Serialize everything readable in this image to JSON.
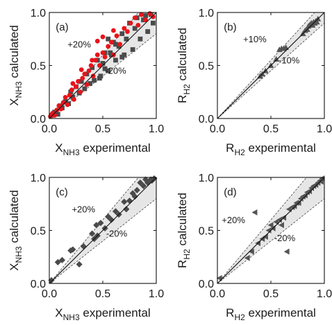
{
  "chart_data": [
    {
      "type": "scatter",
      "panel_label": "(a)",
      "xlabel": {
        "base": "X",
        "sub": "NH3",
        "suffix": " experimental"
      },
      "ylabel": {
        "base": "X",
        "sub": "NH3",
        "suffix": " calculated"
      },
      "xlim": [
        0,
        1
      ],
      "ylim": [
        0,
        1
      ],
      "xticks": [
        "0.0",
        "0.5",
        "1.0"
      ],
      "yticks": [
        "0.0",
        "0.5",
        "1.0"
      ],
      "band_labels": [
        "+20%",
        "-20%"
      ],
      "band_pct": 20,
      "grid": false,
      "series": [
        {
          "marker": "square",
          "color": "#4a4a4a",
          "points": [
            [
              0.02,
              0.03
            ],
            [
              0.05,
              0.06
            ],
            [
              0.08,
              0.04
            ],
            [
              0.1,
              0.12
            ],
            [
              0.12,
              0.1
            ],
            [
              0.15,
              0.16
            ],
            [
              0.18,
              0.14
            ],
            [
              0.2,
              0.25
            ],
            [
              0.22,
              0.2
            ],
            [
              0.25,
              0.3
            ],
            [
              0.28,
              0.24
            ],
            [
              0.3,
              0.35
            ],
            [
              0.33,
              0.28
            ],
            [
              0.35,
              0.42
            ],
            [
              0.38,
              0.33
            ],
            [
              0.4,
              0.48
            ],
            [
              0.42,
              0.36
            ],
            [
              0.45,
              0.55
            ],
            [
              0.48,
              0.4
            ],
            [
              0.5,
              0.52
            ],
            [
              0.52,
              0.62
            ],
            [
              0.55,
              0.45
            ],
            [
              0.58,
              0.6
            ],
            [
              0.6,
              0.72
            ],
            [
              0.62,
              0.55
            ],
            [
              0.65,
              0.68
            ],
            [
              0.68,
              0.8
            ],
            [
              0.7,
              0.6
            ],
            [
              0.72,
              0.75
            ],
            [
              0.75,
              0.9
            ],
            [
              0.78,
              0.65
            ],
            [
              0.8,
              0.85
            ],
            [
              0.82,
              0.95
            ],
            [
              0.85,
              0.75
            ],
            [
              0.88,
              0.93
            ],
            [
              0.9,
              0.97
            ],
            [
              0.92,
              0.82
            ],
            [
              0.95,
              0.98
            ],
            [
              0.97,
              0.9
            ],
            [
              0.57,
              0.62
            ],
            [
              0.55,
              0.75
            ],
            [
              0.47,
              0.38
            ],
            [
              0.52,
              0.47
            ],
            [
              0.62,
              0.7
            ],
            [
              0.68,
              0.58
            ]
          ]
        },
        {
          "marker": "circle",
          "color": "#e8141b",
          "points": [
            [
              0.01,
              0.02
            ],
            [
              0.03,
              0.05
            ],
            [
              0.05,
              0.03
            ],
            [
              0.07,
              0.08
            ],
            [
              0.09,
              0.12
            ],
            [
              0.11,
              0.09
            ],
            [
              0.13,
              0.15
            ],
            [
              0.15,
              0.2
            ],
            [
              0.17,
              0.13
            ],
            [
              0.19,
              0.22
            ],
            [
              0.21,
              0.27
            ],
            [
              0.23,
              0.18
            ],
            [
              0.25,
              0.3
            ],
            [
              0.27,
              0.35
            ],
            [
              0.29,
              0.25
            ],
            [
              0.31,
              0.38
            ],
            [
              0.33,
              0.42
            ],
            [
              0.35,
              0.32
            ],
            [
              0.37,
              0.45
            ],
            [
              0.39,
              0.5
            ],
            [
              0.41,
              0.4
            ],
            [
              0.43,
              0.55
            ],
            [
              0.45,
              0.6
            ],
            [
              0.47,
              0.5
            ],
            [
              0.5,
              0.62
            ],
            [
              0.52,
              0.58
            ],
            [
              0.55,
              0.68
            ],
            [
              0.58,
              0.72
            ],
            [
              0.6,
              0.6
            ],
            [
              0.63,
              0.78
            ],
            [
              0.66,
              0.7
            ],
            [
              0.7,
              0.85
            ],
            [
              0.73,
              0.82
            ],
            [
              0.76,
              0.9
            ],
            [
              0.8,
              0.95
            ],
            [
              0.83,
              0.88
            ],
            [
              0.86,
              0.98
            ],
            [
              0.9,
              0.93
            ],
            [
              0.94,
              0.99
            ],
            [
              0.97,
              0.96
            ],
            [
              0.4,
              0.55
            ],
            [
              0.45,
              0.73
            ],
            [
              0.5,
              0.77
            ],
            [
              0.6,
              0.83
            ],
            [
              0.3,
              0.46
            ],
            [
              0.22,
              0.33
            ]
          ]
        }
      ]
    },
    {
      "type": "scatter",
      "panel_label": "(b)",
      "xlabel": {
        "base": "R",
        "sub": "H2",
        "suffix": " experimental"
      },
      "ylabel": {
        "base": "R",
        "sub": "H2",
        "suffix": " calculated"
      },
      "xlim": [
        0,
        1
      ],
      "ylim": [
        0,
        1
      ],
      "xticks": [
        "0.0",
        "0.5",
        "1.0"
      ],
      "yticks": [
        "0.0",
        "0.5",
        "1.0"
      ],
      "band_labels": [
        "+10%",
        "-10%"
      ],
      "band_pct": 10,
      "grid": false,
      "series": [
        {
          "marker": "triangle-up",
          "color": "#555555",
          "points": [
            [
              0.4,
              0.4
            ],
            [
              0.42,
              0.42
            ],
            [
              0.45,
              0.45
            ],
            [
              0.5,
              0.5
            ],
            [
              0.55,
              0.56
            ],
            [
              0.58,
              0.65
            ],
            [
              0.6,
              0.66
            ],
            [
              0.62,
              0.66
            ],
            [
              0.64,
              0.67
            ],
            [
              0.8,
              0.8
            ],
            [
              0.82,
              0.83
            ],
            [
              0.84,
              0.84
            ],
            [
              0.85,
              0.87
            ],
            [
              0.86,
              0.88
            ],
            [
              0.87,
              0.89
            ],
            [
              0.88,
              0.9
            ],
            [
              0.89,
              0.88
            ],
            [
              0.9,
              0.91
            ],
            [
              0.91,
              0.9
            ],
            [
              0.92,
              0.92
            ],
            [
              0.93,
              0.91
            ],
            [
              0.94,
              0.94
            ]
          ]
        }
      ]
    },
    {
      "type": "scatter",
      "panel_label": "(c)",
      "xlabel": {
        "base": "X",
        "sub": "NH3",
        "suffix": " experimental"
      },
      "ylabel": {
        "base": "X",
        "sub": "NH3",
        "suffix": " calculated"
      },
      "xlim": [
        0,
        1
      ],
      "ylim": [
        0,
        1
      ],
      "xticks": [
        "0.0",
        "0.5",
        "1.0"
      ],
      "yticks": [
        "0.0",
        "0.5",
        "1.0"
      ],
      "band_labels": [
        "+20%",
        "-20%"
      ],
      "band_pct": 20,
      "grid": false,
      "series": [
        {
          "marker": "diamond",
          "color": "#4a4a4a",
          "points": [
            [
              0.02,
              0.03
            ],
            [
              0.08,
              0.2
            ],
            [
              0.12,
              0.22
            ],
            [
              0.2,
              0.31
            ],
            [
              0.22,
              0.32
            ],
            [
              0.28,
              0.18
            ],
            [
              0.32,
              0.35
            ],
            [
              0.4,
              0.47
            ],
            [
              0.42,
              0.42
            ],
            [
              0.45,
              0.45
            ],
            [
              0.48,
              0.57
            ],
            [
              0.52,
              0.52
            ],
            [
              0.55,
              0.63
            ],
            [
              0.58,
              0.6
            ],
            [
              0.62,
              0.68
            ],
            [
              0.65,
              0.65
            ],
            [
              0.7,
              0.77
            ],
            [
              0.72,
              0.7
            ],
            [
              0.75,
              0.78
            ],
            [
              0.78,
              0.85
            ],
            [
              0.8,
              0.82
            ],
            [
              0.82,
              0.88
            ],
            [
              0.85,
              0.95
            ],
            [
              0.88,
              0.92
            ],
            [
              0.9,
              0.98
            ],
            [
              0.92,
              0.95
            ],
            [
              0.95,
              0.98
            ],
            [
              0.96,
              0.97
            ],
            [
              0.98,
              0.99
            ],
            [
              0.44,
              0.55
            ]
          ]
        }
      ]
    },
    {
      "type": "scatter",
      "panel_label": "(d)",
      "xlabel": {
        "base": "R",
        "sub": "H2",
        "suffix": " experimental"
      },
      "ylabel": {
        "base": "R",
        "sub": "H2",
        "suffix": " calculated"
      },
      "xlim": [
        0,
        1
      ],
      "ylim": [
        0,
        1
      ],
      "xticks": [
        "0.0",
        "0.5",
        "1.0"
      ],
      "yticks": [
        "0.0",
        "0.5",
        "1.0"
      ],
      "band_labels": [
        "+20%",
        "-20%"
      ],
      "band_pct": 20,
      "grid": false,
      "series": [
        {
          "marker": "triangle-left",
          "color": "#555555",
          "points": [
            [
              0.02,
              0.05
            ],
            [
              0.28,
              0.24
            ],
            [
              0.32,
              0.3
            ],
            [
              0.35,
              0.67
            ],
            [
              0.38,
              0.38
            ],
            [
              0.42,
              0.42
            ],
            [
              0.45,
              0.44
            ],
            [
              0.48,
              0.5
            ],
            [
              0.5,
              0.55
            ],
            [
              0.52,
              0.52
            ],
            [
              0.55,
              0.58
            ],
            [
              0.58,
              0.6
            ],
            [
              0.6,
              0.55
            ],
            [
              0.62,
              0.62
            ],
            [
              0.65,
              0.3
            ],
            [
              0.67,
              0.7
            ],
            [
              0.7,
              0.72
            ],
            [
              0.72,
              0.73
            ],
            [
              0.74,
              0.76
            ],
            [
              0.76,
              0.76
            ],
            [
              0.78,
              0.8
            ],
            [
              0.8,
              0.82
            ],
            [
              0.82,
              0.83
            ],
            [
              0.84,
              0.86
            ],
            [
              0.86,
              0.87
            ],
            [
              0.88,
              0.9
            ],
            [
              0.9,
              0.92
            ],
            [
              0.92,
              0.93
            ],
            [
              0.94,
              0.95
            ],
            [
              0.96,
              0.97
            ],
            [
              0.97,
              0.96
            ],
            [
              0.98,
              0.99
            ]
          ]
        }
      ]
    }
  ]
}
